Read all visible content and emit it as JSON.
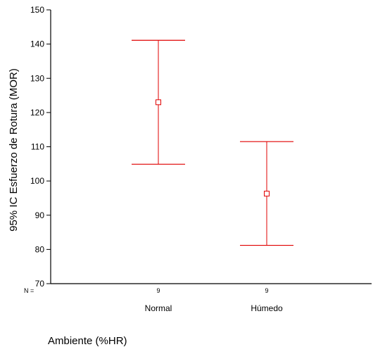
{
  "chart_data": {
    "type": "errorbar",
    "categories": [
      "Normal",
      "Húmedo"
    ],
    "n_prefix": "N =",
    "n_values": [
      "9",
      "9"
    ],
    "series": [
      {
        "means": [
          123,
          96.3
        ],
        "lower": [
          104.9,
          81.2
        ],
        "upper": [
          141.1,
          111.5
        ]
      }
    ],
    "ylabel": "95% IC Esfuerzo de Rotura (MOR)",
    "xlabel": "Ambiente (%HR)",
    "ylim": [
      70,
      150
    ],
    "yticks": [
      70,
      80,
      90,
      100,
      110,
      120,
      130,
      140,
      150
    ],
    "color": "#e00000",
    "grid": false
  }
}
